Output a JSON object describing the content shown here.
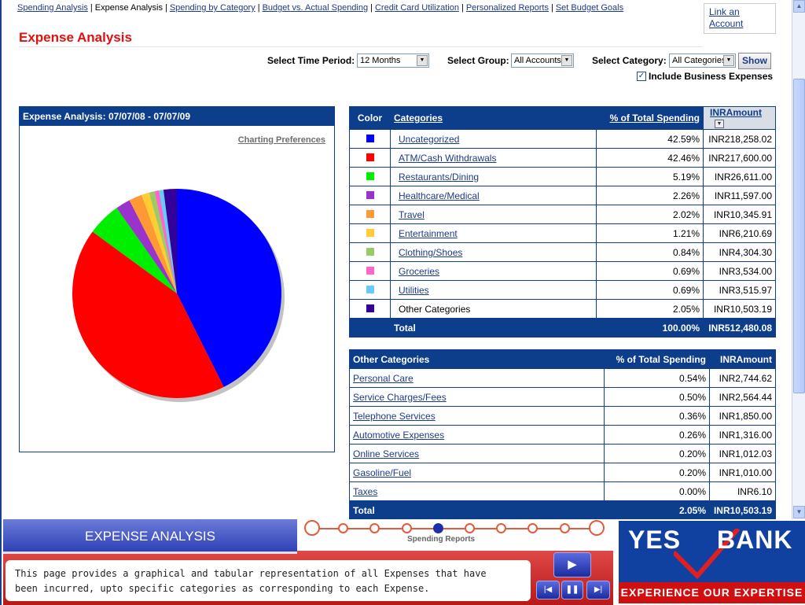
{
  "nav": {
    "items": [
      {
        "label": "Spending Analysis",
        "current": false
      },
      {
        "label": "Expense Analysis",
        "current": true
      },
      {
        "label": "Spending by Category",
        "current": false
      },
      {
        "label": "Budget vs. Actual Spending",
        "current": false
      },
      {
        "label": "Credit Card Utilization",
        "current": false
      },
      {
        "label": "Personalized Reports",
        "current": false
      },
      {
        "label": "Set Budget Goals",
        "current": false
      }
    ],
    "separator": "|"
  },
  "link_account": {
    "line1": "Link an",
    "line2": "Account"
  },
  "page_title": "Expense Analysis",
  "filters": {
    "time_period_label": "Select Time Period:",
    "time_period_value": "12 Months",
    "group_label": "Select Group:",
    "group_value": "All Accounts",
    "category_label": "Select Category:",
    "category_value": "All Categories",
    "show_button": "Show",
    "include_business_label": "Include Business Expenses",
    "include_business_checked": true
  },
  "chart_panel": {
    "title": "Expense Analysis: 07/07/08 - 07/07/09",
    "preferences_link": "Charting Preferences"
  },
  "chart_data": {
    "type": "pie",
    "categories": [
      "Uncategorized",
      "ATM/Cash Withdrawals",
      "Restaurants/Dining",
      "Healthcare/Medical",
      "Travel",
      "Entertainment",
      "Clothing/Shoes",
      "Groceries",
      "Utilities",
      "Other Categories"
    ],
    "values": [
      42.59,
      42.46,
      5.19,
      2.26,
      2.02,
      1.21,
      0.84,
      0.69,
      0.69,
      2.05
    ],
    "colors": [
      "#0000ff",
      "#ff0000",
      "#00ee00",
      "#9933cc",
      "#ff9933",
      "#ffcc33",
      "#99cc66",
      "#ff66cc",
      "#66ccff",
      "#330099"
    ]
  },
  "categories_table": {
    "headers": {
      "color": "Color",
      "category": "Categories",
      "percent": "% of Total Spending",
      "amount": "INRAmount"
    },
    "rows": [
      {
        "color": "#0000ff",
        "name": "Uncategorized",
        "percent": "42.59%",
        "amount": "INR218,258.02"
      },
      {
        "color": "#ff0000",
        "name": "ATM/Cash Withdrawals",
        "percent": "42.46%",
        "amount": "INR217,600.00"
      },
      {
        "color": "#00ee00",
        "name": "Restaurants/Dining",
        "percent": "5.19%",
        "amount": "INR26,611.00"
      },
      {
        "color": "#9933cc",
        "name": "Healthcare/Medical",
        "percent": "2.26%",
        "amount": "INR11,597.00"
      },
      {
        "color": "#ff9933",
        "name": "Travel",
        "percent": "2.02%",
        "amount": "INR10,345.91"
      },
      {
        "color": "#ffcc33",
        "name": "Entertainment",
        "percent": "1.21%",
        "amount": "INR6,210.69"
      },
      {
        "color": "#99cc66",
        "name": "Clothing/Shoes",
        "percent": "0.84%",
        "amount": "INR4,304.30"
      },
      {
        "color": "#ff66cc",
        "name": "Groceries",
        "percent": "0.69%",
        "amount": "INR3,534.00"
      },
      {
        "color": "#66ccff",
        "name": "Utilities",
        "percent": "0.69%",
        "amount": "INR3,515.97"
      },
      {
        "color": "#330099",
        "name": "Other Categories",
        "percent": "2.05%",
        "amount": "INR10,503.19"
      }
    ],
    "total": {
      "label": "Total",
      "percent": "100.00%",
      "amount": "INR512,480.08"
    }
  },
  "other_table": {
    "headers": {
      "category": "Other Categories",
      "percent": "% of Total Spending",
      "amount": "INRAmount"
    },
    "rows": [
      {
        "name": "Personal Care",
        "percent": "0.54%",
        "amount": "INR2,744.62"
      },
      {
        "name": "Service Charges/Fees",
        "percent": "0.50%",
        "amount": "INR2,564.44"
      },
      {
        "name": "Telephone Services",
        "percent": "0.36%",
        "amount": "INR1,850.00"
      },
      {
        "name": "Automotive Expenses",
        "percent": "0.26%",
        "amount": "INR1,316.00"
      },
      {
        "name": "Online Services",
        "percent": "0.20%",
        "amount": "INR1,012.03"
      },
      {
        "name": "Gasoline/Fuel",
        "percent": "0.20%",
        "amount": "INR1,010.00"
      },
      {
        "name": "Taxes",
        "percent": "0.00%",
        "amount": "INR6.10"
      }
    ],
    "total": {
      "label": "Total",
      "percent": "2.05%",
      "amount": "INR10,503.19"
    }
  },
  "tutorial": {
    "section_title": "EXPENSE ANALYSIS",
    "progress_label": "Spending Reports",
    "progress_steps": 10,
    "progress_active_step": 5,
    "description_line1": "This page provides a graphical and tabular representation of all Expenses that have",
    "description_line2": "been incurred, upto specific categories as corresponding  to each Expense."
  },
  "brand": {
    "name_left": "YES",
    "name_right": "BANK",
    "tagline": "EXPERIENCE OUR EXPERTISE",
    "primary_color": "#1040a0",
    "accent_color": "#d01010"
  }
}
